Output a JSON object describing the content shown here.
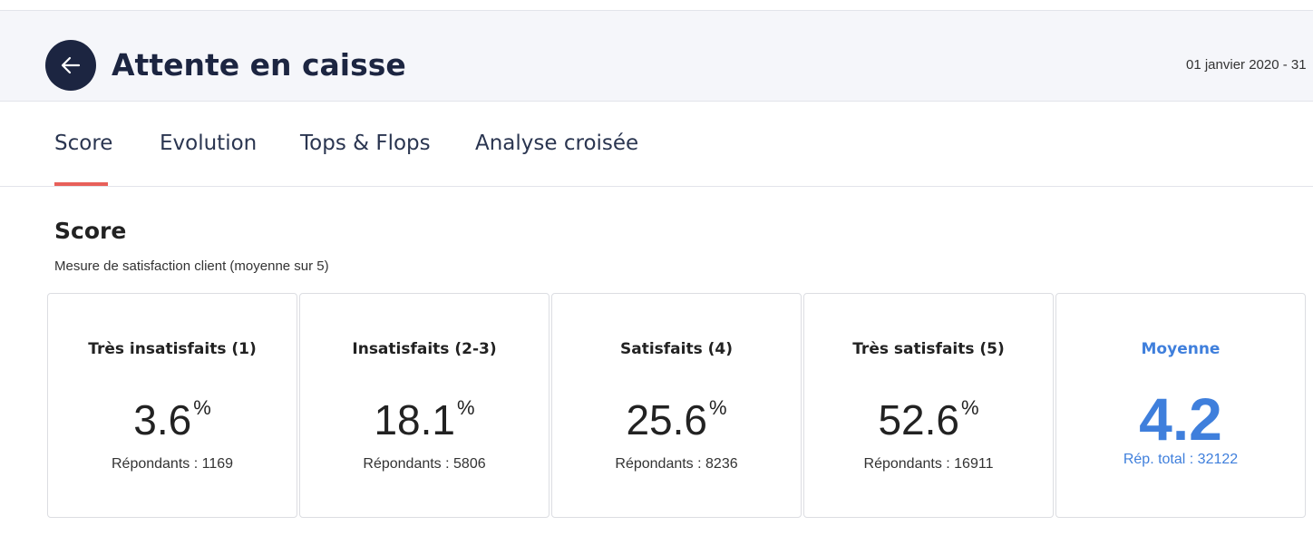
{
  "header": {
    "title": "Attente en caisse",
    "date_range": "01 janvier 2020 - 31"
  },
  "tabs": [
    "Score",
    "Evolution",
    "Tops & Flops",
    "Analyse croisée"
  ],
  "section": {
    "title": "Score",
    "subtitle": "Mesure de satisfaction client (moyenne sur 5)"
  },
  "cards": [
    {
      "label": "Très insatisfaits (1)",
      "value": "3.6",
      "unit": "%",
      "respondents": "Répondants : 1169"
    },
    {
      "label": "Insatisfaits (2-3)",
      "value": "18.1",
      "unit": "%",
      "respondents": "Répondants : 5806"
    },
    {
      "label": "Satisfaits (4)",
      "value": "25.6",
      "unit": "%",
      "respondents": "Répondants : 8236"
    },
    {
      "label": "Très satisfaits (5)",
      "value": "52.6",
      "unit": "%",
      "respondents": "Répondants : 16911"
    }
  ],
  "average": {
    "label": "Moyenne",
    "value": "4.2",
    "total": "Rép. total : 32122"
  }
}
